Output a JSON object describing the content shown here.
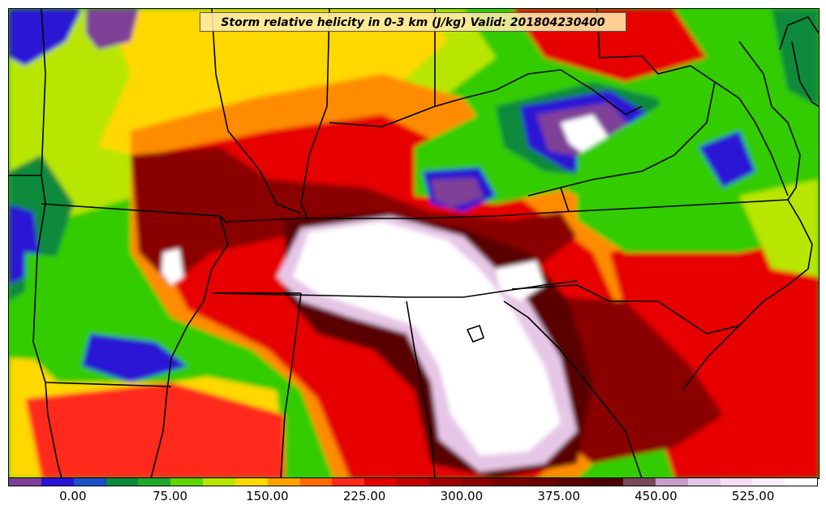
{
  "title": "Storm relative helicity in 0-3 km (J/kg) Valid: 201804230400",
  "colorbar": {
    "min": -50,
    "max": 575,
    "step": 25,
    "colors": [
      "#7f3f98",
      "#2a12d4",
      "#1b4fc6",
      "#0b8a3a",
      "#1fa82c",
      "#5ed600",
      "#b8e600",
      "#ffd800",
      "#ffa200",
      "#ff6a00",
      "#ff2a1a",
      "#e60000",
      "#c40000",
      "#a00000",
      "#8a0000",
      "#7a0000",
      "#6a0000",
      "#5a0000",
      "#4c0000",
      "#7a4a5a",
      "#c89ec8",
      "#e6c6e6",
      "#f5dff5",
      "#fbeefb",
      "#ffffff"
    ],
    "labels": [
      {
        "text": "0.00",
        "value": 0
      },
      {
        "text": "75.00",
        "value": 75
      },
      {
        "text": "150.00",
        "value": 150
      },
      {
        "text": "225.00",
        "value": 225
      },
      {
        "text": "300.00",
        "value": 300
      },
      {
        "text": "375.00",
        "value": 375
      },
      {
        "text": "450.00",
        "value": 450
      },
      {
        "text": "525.00",
        "value": 525
      }
    ]
  },
  "colors": {
    "purple": "#7f3f98",
    "blue": "#2a12d4",
    "dark_green": "#0b8a3a",
    "green": "#33cc00",
    "lime": "#b8e600",
    "yellow": "#ffd800",
    "orange": "#ff8c00",
    "red": "#e60000",
    "dark_red": "#8a0000",
    "maroon": "#5a0000",
    "pink": "#e6c6e6",
    "white": "#ffffff",
    "boundary": "#000000"
  }
}
